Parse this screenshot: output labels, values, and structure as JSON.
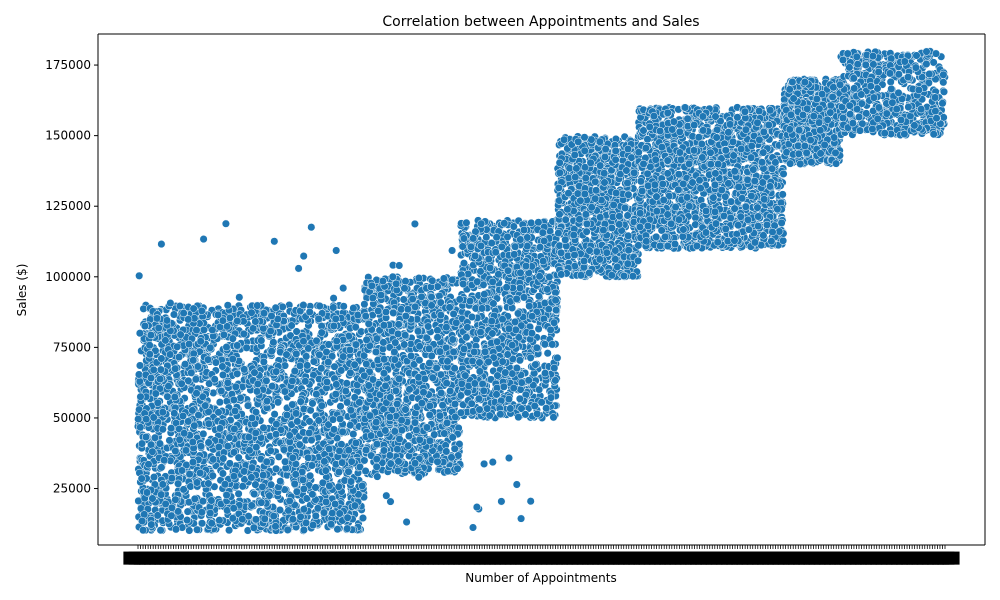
{
  "chart_data": {
    "type": "scatter",
    "title": "Correlation between Appointments and Sales",
    "xlabel": "Number of Appointments",
    "ylabel": "Sales ($)",
    "ylim": [
      5000,
      186000
    ],
    "y_ticks": [
      25000,
      50000,
      75000,
      100000,
      125000,
      150000,
      175000
    ],
    "x_tick_labels": "dense overlapping categorical labels (unreadable)",
    "grid": false,
    "legend": "none",
    "point_color": "#1f77b4",
    "point_count_estimate": 6000,
    "clusters": [
      {
        "x_range": [
          0.0,
          0.28
        ],
        "y_range": [
          10000,
          90000
        ],
        "density": "high"
      },
      {
        "x_range": [
          0.28,
          0.4
        ],
        "y_range": [
          30000,
          100000
        ],
        "density": "high"
      },
      {
        "x_range": [
          0.4,
          0.52
        ],
        "y_range": [
          50000,
          120000
        ],
        "density": "high"
      },
      {
        "x_range": [
          0.52,
          0.62
        ],
        "y_range": [
          100000,
          150000
        ],
        "density": "high"
      },
      {
        "x_range": [
          0.62,
          0.8
        ],
        "y_range": [
          110000,
          160000
        ],
        "density": "high"
      },
      {
        "x_range": [
          0.8,
          0.87
        ],
        "y_range": [
          140000,
          170000
        ],
        "density": "high"
      },
      {
        "x_range": [
          0.87,
          1.0
        ],
        "y_range": [
          150000,
          180000
        ],
        "density": "medium"
      }
    ]
  }
}
